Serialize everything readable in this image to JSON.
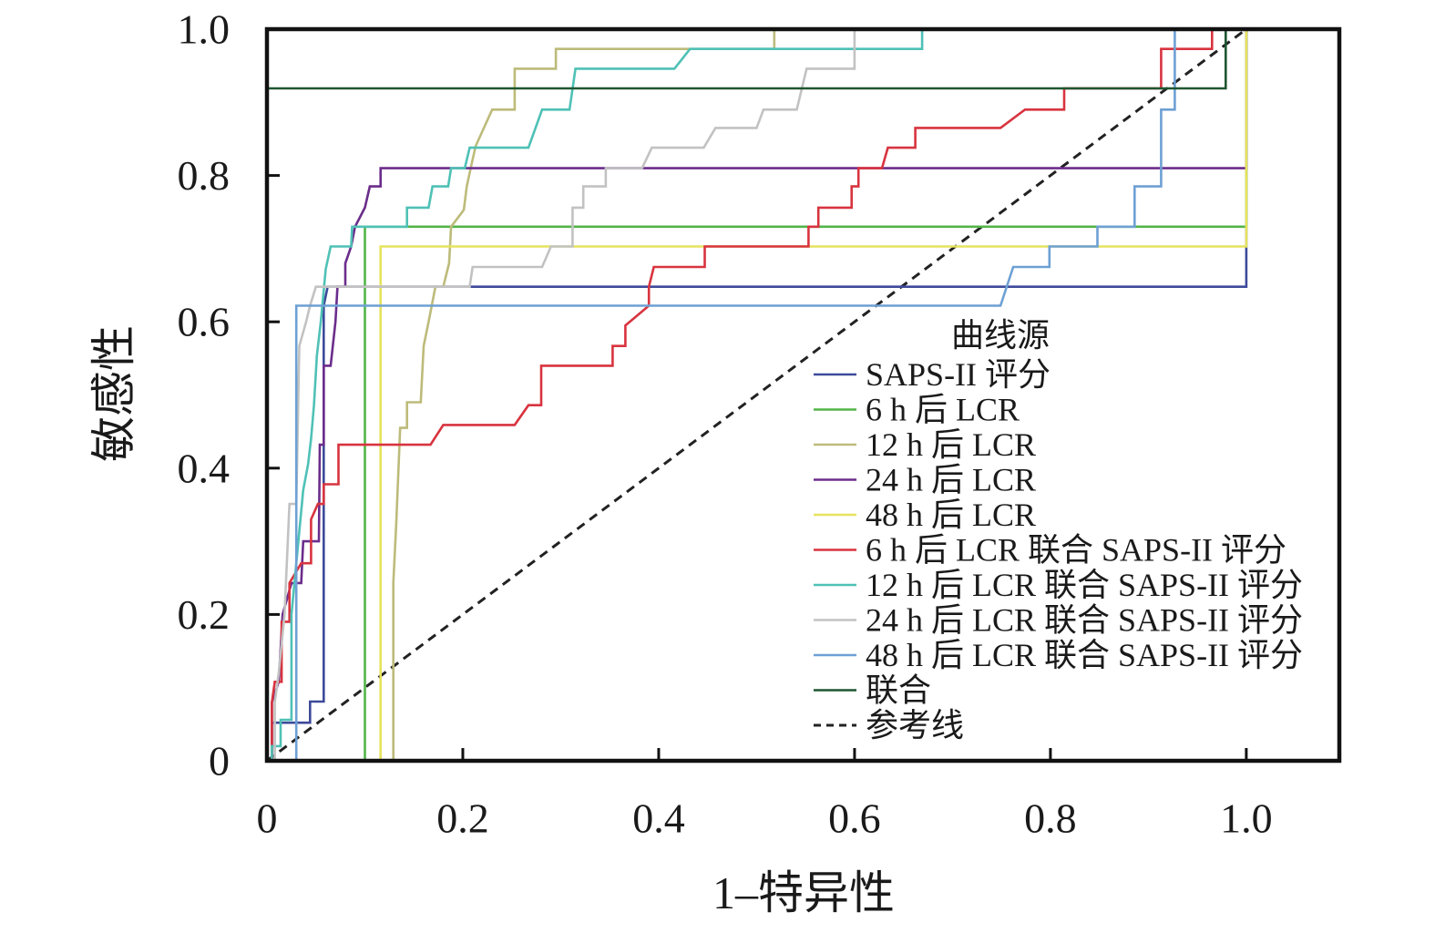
{
  "chart_data": {
    "type": "line",
    "xlabel": "1–特异性",
    "ylabel": "敏感性",
    "xlim": [
      0,
      1.095
    ],
    "ylim": [
      0,
      1.0
    ],
    "xticks": [
      0,
      0.2,
      0.4,
      0.6,
      0.8,
      1.0
    ],
    "xtick_labels": [
      "0",
      "0.2",
      "0.4",
      "0.6",
      "0.8",
      "1.0"
    ],
    "yticks": [
      0,
      0.2,
      0.4,
      0.6,
      0.8,
      1.0
    ],
    "ytick_labels": [
      "0",
      "0.2",
      "0.4",
      "0.6",
      "0.8",
      "1.0"
    ],
    "grid": false,
    "legend": {
      "title": "曲线源",
      "position": "lower-right"
    },
    "series": [
      {
        "name": "SAPS-II 评分",
        "color": "#3d4a9a",
        "points": [
          [
            0,
            0
          ],
          [
            0.005,
            0
          ],
          [
            0.005,
            0.052
          ],
          [
            0.044,
            0.052
          ],
          [
            0.044,
            0.081
          ],
          [
            0.058,
            0.081
          ],
          [
            0.058,
            0.622
          ],
          [
            0.062,
            0.648
          ],
          [
            1.0,
            0.648
          ],
          [
            1.0,
            1.0
          ]
        ]
      },
      {
        "name": "6 h 后 LCR",
        "color": "#52b548",
        "points": [
          [
            0,
            0
          ],
          [
            0.1,
            0
          ],
          [
            0.1,
            0.73
          ],
          [
            1.0,
            0.73
          ],
          [
            1.0,
            1.0
          ]
        ]
      },
      {
        "name": "12 h 后 LCR",
        "color": "#bdbb7a",
        "points": [
          [
            0,
            0
          ],
          [
            0.129,
            0
          ],
          [
            0.129,
            0.243
          ],
          [
            0.132,
            0.324
          ],
          [
            0.136,
            0.455
          ],
          [
            0.143,
            0.455
          ],
          [
            0.143,
            0.49
          ],
          [
            0.157,
            0.49
          ],
          [
            0.16,
            0.567
          ],
          [
            0.165,
            0.6
          ],
          [
            0.172,
            0.648
          ],
          [
            0.18,
            0.648
          ],
          [
            0.186,
            0.68
          ],
          [
            0.188,
            0.73
          ],
          [
            0.201,
            0.753
          ],
          [
            0.204,
            0.785
          ],
          [
            0.208,
            0.81
          ],
          [
            0.213,
            0.84
          ],
          [
            0.23,
            0.89
          ],
          [
            0.253,
            0.89
          ],
          [
            0.253,
            0.946
          ],
          [
            0.295,
            0.946
          ],
          [
            0.295,
            0.973
          ],
          [
            0.518,
            0.973
          ],
          [
            0.518,
            1.0
          ],
          [
            1.0,
            1.0
          ]
        ]
      },
      {
        "name": "24 h 后 LCR",
        "color": "#6b2d8b",
        "points": [
          [
            0,
            0
          ],
          [
            0.005,
            0
          ],
          [
            0.005,
            0.08
          ],
          [
            0.012,
            0.108
          ],
          [
            0.016,
            0.2
          ],
          [
            0.025,
            0.243
          ],
          [
            0.035,
            0.243
          ],
          [
            0.037,
            0.3
          ],
          [
            0.053,
            0.3
          ],
          [
            0.054,
            0.432
          ],
          [
            0.058,
            0.432
          ],
          [
            0.058,
            0.54
          ],
          [
            0.065,
            0.54
          ],
          [
            0.07,
            0.6
          ],
          [
            0.072,
            0.648
          ],
          [
            0.08,
            0.648
          ],
          [
            0.08,
            0.68
          ],
          [
            0.086,
            0.703
          ],
          [
            0.09,
            0.73
          ],
          [
            0.1,
            0.756
          ],
          [
            0.105,
            0.785
          ],
          [
            0.116,
            0.785
          ],
          [
            0.116,
            0.81
          ],
          [
            1.0,
            0.81
          ],
          [
            1.0,
            1.0
          ]
        ]
      },
      {
        "name": "48 h 后 LCR",
        "color": "#e6e35e",
        "points": [
          [
            0,
            0
          ],
          [
            0.116,
            0
          ],
          [
            0.116,
            0.703
          ],
          [
            1.0,
            0.703
          ],
          [
            1.0,
            1.0
          ]
        ]
      },
      {
        "name": "6 h 后 LCR 联合 SAPS-II 评分",
        "color": "#d8343f",
        "points": [
          [
            0,
            0
          ],
          [
            0.005,
            0
          ],
          [
            0.005,
            0.08
          ],
          [
            0.008,
            0.108
          ],
          [
            0.015,
            0.108
          ],
          [
            0.015,
            0.19
          ],
          [
            0.023,
            0.19
          ],
          [
            0.023,
            0.243
          ],
          [
            0.035,
            0.27
          ],
          [
            0.045,
            0.27
          ],
          [
            0.045,
            0.33
          ],
          [
            0.052,
            0.351
          ],
          [
            0.058,
            0.351
          ],
          [
            0.058,
            0.378
          ],
          [
            0.073,
            0.378
          ],
          [
            0.073,
            0.432
          ],
          [
            0.167,
            0.432
          ],
          [
            0.18,
            0.459
          ],
          [
            0.253,
            0.459
          ],
          [
            0.267,
            0.486
          ],
          [
            0.28,
            0.486
          ],
          [
            0.28,
            0.54
          ],
          [
            0.353,
            0.54
          ],
          [
            0.353,
            0.567
          ],
          [
            0.366,
            0.567
          ],
          [
            0.366,
            0.595
          ],
          [
            0.39,
            0.622
          ],
          [
            0.39,
            0.648
          ],
          [
            0.395,
            0.675
          ],
          [
            0.447,
            0.675
          ],
          [
            0.447,
            0.703
          ],
          [
            0.553,
            0.703
          ],
          [
            0.553,
            0.73
          ],
          [
            0.563,
            0.73
          ],
          [
            0.563,
            0.756
          ],
          [
            0.597,
            0.756
          ],
          [
            0.597,
            0.785
          ],
          [
            0.604,
            0.785
          ],
          [
            0.604,
            0.81
          ],
          [
            0.628,
            0.81
          ],
          [
            0.634,
            0.838
          ],
          [
            0.662,
            0.838
          ],
          [
            0.662,
            0.865
          ],
          [
            0.749,
            0.865
          ],
          [
            0.774,
            0.89
          ],
          [
            0.814,
            0.89
          ],
          [
            0.814,
            0.919
          ],
          [
            0.913,
            0.919
          ],
          [
            0.913,
            0.973
          ],
          [
            0.965,
            0.973
          ],
          [
            0.965,
            1.0
          ],
          [
            1.0,
            1.0
          ]
        ]
      },
      {
        "name": "12 h 后 LCR 联合 SAPS-II 评分",
        "color": "#4fc1b6",
        "points": [
          [
            0,
            0
          ],
          [
            0.005,
            0
          ],
          [
            0.005,
            0.02
          ],
          [
            0.014,
            0.02
          ],
          [
            0.014,
            0.056
          ],
          [
            0.025,
            0.056
          ],
          [
            0.025,
            0.2
          ],
          [
            0.03,
            0.27
          ],
          [
            0.037,
            0.37
          ],
          [
            0.042,
            0.405
          ],
          [
            0.045,
            0.44
          ],
          [
            0.048,
            0.486
          ],
          [
            0.051,
            0.554
          ],
          [
            0.055,
            0.6
          ],
          [
            0.06,
            0.672
          ],
          [
            0.065,
            0.703
          ],
          [
            0.086,
            0.703
          ],
          [
            0.087,
            0.73
          ],
          [
            0.143,
            0.73
          ],
          [
            0.143,
            0.756
          ],
          [
            0.165,
            0.756
          ],
          [
            0.169,
            0.785
          ],
          [
            0.185,
            0.785
          ],
          [
            0.188,
            0.81
          ],
          [
            0.202,
            0.81
          ],
          [
            0.207,
            0.838
          ],
          [
            0.267,
            0.838
          ],
          [
            0.281,
            0.89
          ],
          [
            0.309,
            0.89
          ],
          [
            0.315,
            0.946
          ],
          [
            0.416,
            0.946
          ],
          [
            0.432,
            0.973
          ],
          [
            0.669,
            0.973
          ],
          [
            0.669,
            1.0
          ],
          [
            1.0,
            1.0
          ]
        ]
      },
      {
        "name": "24 h 后 LCR 联合 SAPS-II 评分",
        "color": "#c2c2c2",
        "points": [
          [
            0,
            0
          ],
          [
            0.008,
            0
          ],
          [
            0.008,
            0.08
          ],
          [
            0.012,
            0.12
          ],
          [
            0.018,
            0.2
          ],
          [
            0.023,
            0.351
          ],
          [
            0.03,
            0.351
          ],
          [
            0.033,
            0.567
          ],
          [
            0.04,
            0.6
          ],
          [
            0.044,
            0.622
          ],
          [
            0.05,
            0.648
          ],
          [
            0.207,
            0.648
          ],
          [
            0.21,
            0.675
          ],
          [
            0.281,
            0.675
          ],
          [
            0.29,
            0.703
          ],
          [
            0.312,
            0.703
          ],
          [
            0.312,
            0.756
          ],
          [
            0.323,
            0.756
          ],
          [
            0.323,
            0.785
          ],
          [
            0.346,
            0.785
          ],
          [
            0.346,
            0.81
          ],
          [
            0.383,
            0.81
          ],
          [
            0.393,
            0.838
          ],
          [
            0.446,
            0.838
          ],
          [
            0.458,
            0.865
          ],
          [
            0.5,
            0.865
          ],
          [
            0.507,
            0.89
          ],
          [
            0.541,
            0.89
          ],
          [
            0.551,
            0.946
          ],
          [
            0.6,
            0.946
          ],
          [
            0.6,
            1.0
          ],
          [
            1.0,
            1.0
          ]
        ]
      },
      {
        "name": "48 h 后 LCR 联合 SAPS-II 评分",
        "color": "#6ea0d4",
        "points": [
          [
            0,
            0
          ],
          [
            0.03,
            0
          ],
          [
            0.03,
            0.622
          ],
          [
            0.749,
            0.622
          ],
          [
            0.762,
            0.675
          ],
          [
            0.799,
            0.675
          ],
          [
            0.799,
            0.703
          ],
          [
            0.848,
            0.703
          ],
          [
            0.848,
            0.73
          ],
          [
            0.886,
            0.73
          ],
          [
            0.886,
            0.785
          ],
          [
            0.913,
            0.785
          ],
          [
            0.913,
            0.89
          ],
          [
            0.927,
            0.89
          ],
          [
            0.927,
            1.0
          ],
          [
            1.0,
            1.0
          ]
        ]
      },
      {
        "name": "联合",
        "color": "#1e5631",
        "points": [
          [
            0,
            0
          ],
          [
            0,
            0.919
          ],
          [
            0.979,
            0.919
          ],
          [
            0.979,
            1.0
          ],
          [
            1.0,
            1.0
          ]
        ]
      },
      {
        "name": "参考线",
        "color": "#222222",
        "dashed": true,
        "points": [
          [
            0,
            0
          ],
          [
            1.0,
            1.0
          ]
        ]
      }
    ]
  }
}
